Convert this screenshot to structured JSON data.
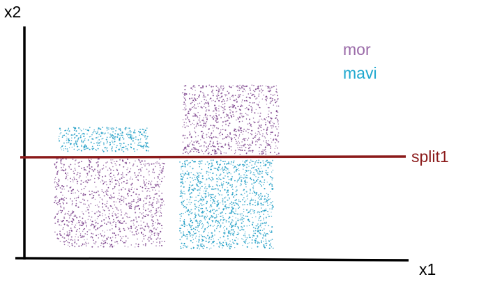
{
  "axes": {
    "x_label": "x1",
    "y_label": "x2"
  },
  "legend": [
    {
      "label": "mor",
      "color": "#9a6aa8"
    },
    {
      "label": "mavi",
      "color": "#1fa8cf"
    }
  ],
  "split": {
    "label": "split1",
    "color": "#8b1a1a"
  },
  "colors": {
    "axis": "#000000",
    "purple_dots": "#7a3f8a",
    "blue_dots": "#1a9bc4",
    "legend_purple": "#9a6aa8",
    "legend_blue": "#1fa8cf"
  }
}
